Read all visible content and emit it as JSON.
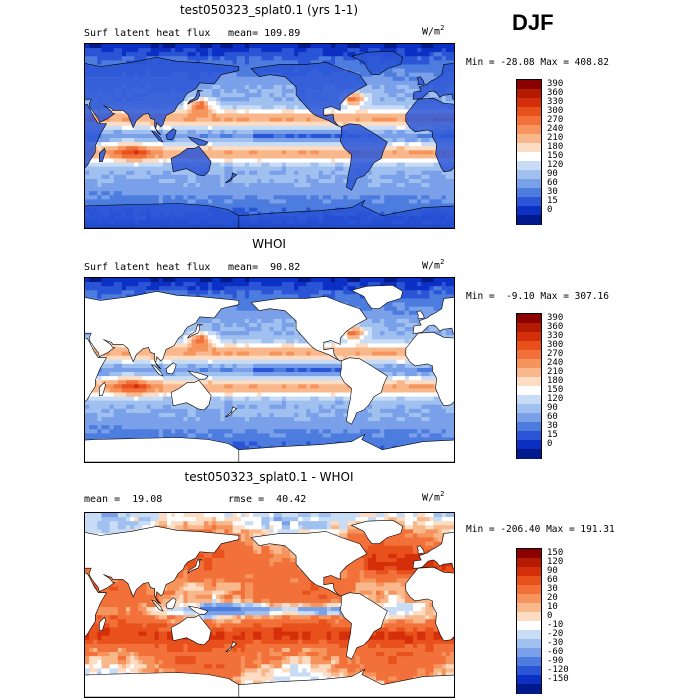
{
  "season": "DJF",
  "panels": [
    {
      "title": "test050323_splat0.1 (yrs 1-1)",
      "left_label": "Surf latent heat flux",
      "right_label": "mean= 109.89",
      "units": "W/m",
      "units_exp": "2",
      "min_max": "Min = -28.08 Max = 408.82",
      "scale": "flux",
      "land_masked": false
    },
    {
      "title": "WHOI",
      "left_label": "Surf latent heat flux",
      "right_label": "mean=  90.82",
      "units": "W/m",
      "units_exp": "2",
      "min_max": "Min =  -9.10 Max = 307.16",
      "scale": "flux",
      "land_masked": true
    },
    {
      "title": "test050323_splat0.1 - WHOI",
      "left_label": "mean =  19.08",
      "right_label": "rmse =  40.42",
      "units": "W/m",
      "units_exp": "2",
      "min_max": "Min = -206.40 Max = 191.31",
      "scale": "diff",
      "land_masked": true
    }
  ],
  "colorbars": {
    "flux": {
      "labels": [
        "390",
        "360",
        "330",
        "300",
        "270",
        "240",
        "210",
        "180",
        "150",
        "120",
        "90",
        "60",
        "30",
        "15",
        "0"
      ],
      "colors": [
        "#8b0000",
        "#b41a00",
        "#d42f0a",
        "#e8501c",
        "#f2703a",
        "#f6945e",
        "#f9b88c",
        "#fcdcc2",
        "#ffffff",
        "#c8dcf6",
        "#a0c0f0",
        "#7aa0ea",
        "#4d7cdf",
        "#2a55d6",
        "#0c2fc4",
        "#001a8c"
      ]
    },
    "diff": {
      "labels": [
        "150",
        "120",
        "90",
        "60",
        "30",
        "20",
        "10",
        "0",
        "-10",
        "-20",
        "-30",
        "-60",
        "-90",
        "-120",
        "-150"
      ],
      "colors": [
        "#8b0000",
        "#b41a00",
        "#d42f0a",
        "#e8501c",
        "#f2703a",
        "#f6945e",
        "#f9b88c",
        "#fcdcc2",
        "#ffffff",
        "#c8dcf6",
        "#a0c0f0",
        "#7aa0ea",
        "#4d7cdf",
        "#2a55d6",
        "#0c2fc4",
        "#001a8c"
      ]
    }
  }
}
